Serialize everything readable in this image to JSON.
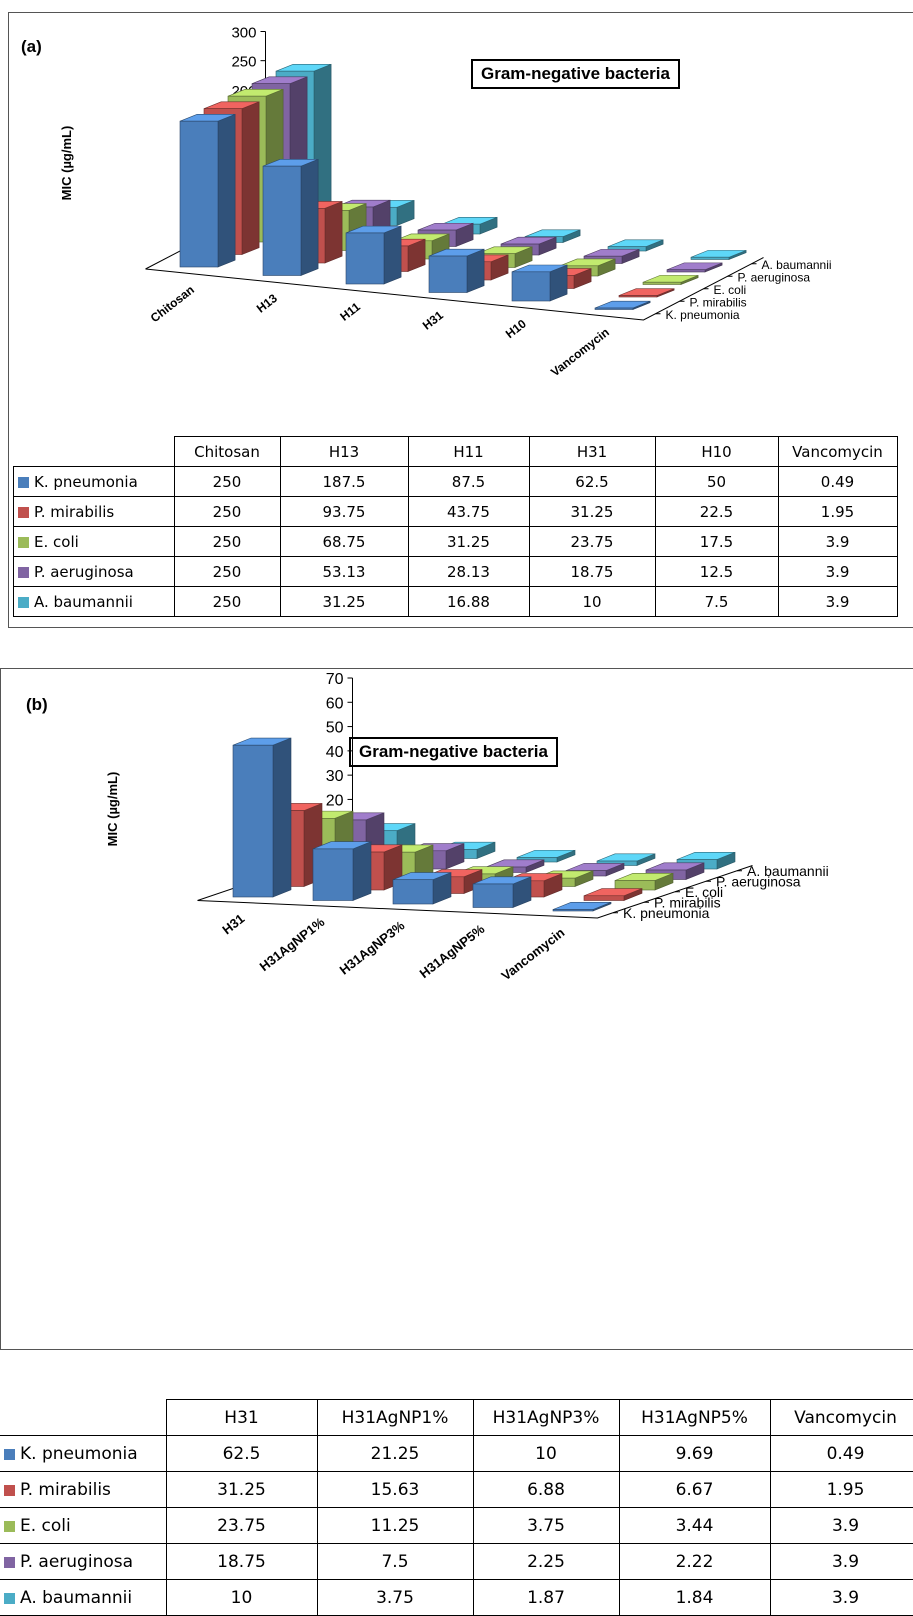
{
  "colors": {
    "K. pneumonia": "#4a7ebb",
    "P. mirabilis": "#c0504d",
    "E. coli": "#9bbb59",
    "P. aeruginosa": "#8064a2",
    "A. baumannii": "#4bacc6"
  },
  "chart_data": [
    {
      "type": "bar",
      "panel": "(a)",
      "title": "Gram-negative bacteria",
      "ylabel": "MIC (µg/mL)",
      "ylim": [
        0,
        300
      ],
      "yticks": [
        "300",
        "250",
        "200",
        "150",
        "100",
        "50",
        "0"
      ],
      "categories": [
        "Chitosan",
        "H13",
        "H11",
        "H31",
        "H10",
        "Vancomycin"
      ],
      "series": [
        {
          "name": "K. pneumonia",
          "values": [
            250,
            187.5,
            87.5,
            62.5,
            50,
            0.49
          ]
        },
        {
          "name": "P. mirabilis",
          "values": [
            250,
            93.75,
            43.75,
            31.25,
            22.5,
            1.95
          ]
        },
        {
          "name": "E. coli",
          "values": [
            250,
            68.75,
            31.25,
            23.75,
            17.5,
            3.9
          ]
        },
        {
          "name": "P. aeruginosa",
          "values": [
            250,
            53.13,
            28.13,
            18.75,
            12.5,
            3.9
          ]
        },
        {
          "name": "A. baumannii",
          "values": [
            250,
            31.25,
            16.88,
            10,
            7.5,
            3.9
          ]
        }
      ],
      "table": {
        "headers": [
          "Chitosan",
          "H13",
          "H11",
          "H31",
          "H10",
          "Vancomycin"
        ],
        "rows": [
          {
            "name": "K. pneumonia",
            "cells": [
              "250",
              "187.5",
              "87.5",
              "62.5",
              "50",
              "0.49"
            ]
          },
          {
            "name": "P. mirabilis",
            "cells": [
              "250",
              "93.75",
              "43.75",
              "31.25",
              "22.5",
              "1.95"
            ]
          },
          {
            "name": "E. coli",
            "cells": [
              "250",
              "68.75",
              "31.25",
              "23.75",
              "17.5",
              "3.9"
            ]
          },
          {
            "name": "P. aeruginosa",
            "cells": [
              "250",
              "53.13",
              "28.13",
              "18.75",
              "12.5",
              "3.9"
            ]
          },
          {
            "name": "A. baumannii",
            "cells": [
              "250",
              "31.25",
              "16.88",
              "10",
              "7.5",
              "3.9"
            ]
          }
        ]
      }
    },
    {
      "type": "bar",
      "panel": "(b)",
      "title": "Gram-negative bacteria",
      "ylabel": "MIC (µg/mL)",
      "ylim": [
        0,
        70
      ],
      "yticks": [
        "70",
        "60",
        "50",
        "40",
        "30",
        "20",
        "10",
        "0"
      ],
      "categories": [
        "H31",
        "H31AgNP1%",
        "H31AgNP3%",
        "H31AgNP5%",
        "Vancomycin"
      ],
      "series": [
        {
          "name": "K. pneumonia",
          "values": [
            62.5,
            21.25,
            10,
            9.69,
            0.49
          ]
        },
        {
          "name": "P. mirabilis",
          "values": [
            31.25,
            15.63,
            6.88,
            6.67,
            1.95
          ]
        },
        {
          "name": "E. coli",
          "values": [
            23.75,
            11.25,
            3.75,
            3.44,
            3.9
          ]
        },
        {
          "name": "P. aeruginosa",
          "values": [
            18.75,
            7.5,
            2.25,
            2.22,
            3.9
          ]
        },
        {
          "name": "A. baumannii",
          "values": [
            10,
            3.75,
            1.87,
            1.84,
            3.9
          ]
        }
      ],
      "table": {
        "headers": [
          "H31",
          "H31AgNP1%",
          "H31AgNP3%",
          "H31AgNP5%",
          "Vancomycin"
        ],
        "rows": [
          {
            "name": "K. pneumonia",
            "cells": [
              "62.5",
              "21.25",
              "10",
              "9.69",
              "0.49"
            ]
          },
          {
            "name": "P. mirabilis",
            "cells": [
              "31.25",
              "15.63",
              "6.88",
              "6.67",
              "1.95"
            ]
          },
          {
            "name": "E. coli",
            "cells": [
              "23.75",
              "11.25",
              "3.75",
              "3.44",
              "3.9"
            ]
          },
          {
            "name": "P. aeruginosa",
            "cells": [
              "18.75",
              "7.5",
              "2.25",
              "2.22",
              "3.9"
            ]
          },
          {
            "name": "A. baumannii",
            "cells": [
              "10",
              "3.75",
              "1.87",
              "1.84",
              "3.9"
            ]
          }
        ]
      }
    }
  ]
}
